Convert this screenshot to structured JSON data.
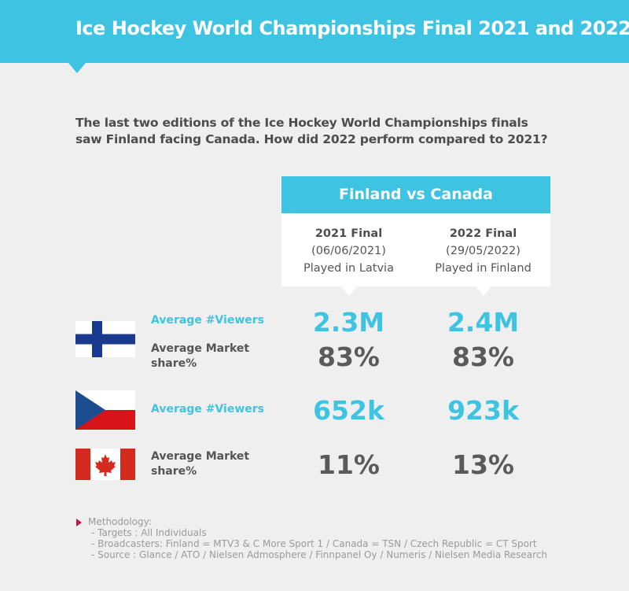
{
  "header": {
    "title": "Ice Hockey World Championships Final 2021 and 2022"
  },
  "intro": {
    "line1": "The last two editions of the Ice Hockey World Championships finals",
    "line2": "saw Finland facing Canada. How did 2022 perform compared to 2021?"
  },
  "card": {
    "title": "Finland vs Canada",
    "columns": [
      {
        "final": "2021 Final",
        "date": "(06/06/2021)",
        "venue": "Played in Latvia"
      },
      {
        "final": "2022 Final",
        "date": "(29/05/2022)",
        "venue": "Played in Finland"
      }
    ]
  },
  "rows": {
    "finland": {
      "flag": "finland-flag",
      "viewers_label": "Average #Viewers",
      "viewers": [
        "2.3M",
        "2.4M"
      ],
      "share_label_1": "Average Market",
      "share_label_2": "share%",
      "share": [
        "83%",
        "83%"
      ]
    },
    "czech": {
      "flag": "czech-republic-flag",
      "viewers_label": "Average #Viewers",
      "viewers": [
        "652k",
        "923k"
      ]
    },
    "canada": {
      "flag": "canada-flag",
      "share_label_1": "Average Market",
      "share_label_2": "share%",
      "share": [
        "11%",
        "13%"
      ]
    }
  },
  "methodology": {
    "title": "Methodology:",
    "lines": [
      "- Targets : All Individuals",
      "- Broadcasters: Finland = MTV3 & C More Sport 1 / Canada = TSN / Czech Republic = CT Sport",
      "- Source : Glance / ATO / Nielsen Admosphere / Finnpanel Oy / Numeris / Nielsen Media Research"
    ]
  },
  "colors": {
    "accent": "#3fc3e3",
    "background": "#efefef",
    "text": "#555555",
    "marker": "#d0103a"
  }
}
